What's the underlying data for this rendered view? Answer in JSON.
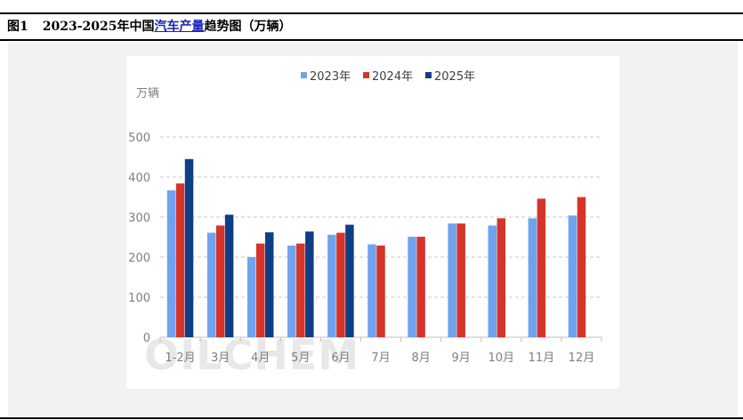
{
  "figure": {
    "number": "图1",
    "title_prefix": "2023-2025年中国",
    "title_link": "汽车产量",
    "title_suffix": "趋势图（万辆）"
  },
  "watermark": "OILCHEM",
  "colors": {
    "2023年": "#6fa3ef",
    "2024年": "#d5342b",
    "2025年": "#0e3e86",
    "link": "#1a25b8"
  },
  "chart_data": {
    "type": "bar",
    "title": "",
    "ylabel": "万辆",
    "xlabel": "",
    "ylim": [
      0,
      500
    ],
    "yticks": [
      0,
      100,
      200,
      300,
      400,
      500
    ],
    "grid": true,
    "legend_position": "top-center",
    "categories": [
      "1-2月",
      "3月",
      "4月",
      "5月",
      "6月",
      "7月",
      "8月",
      "9月",
      "10月",
      "11月",
      "12月"
    ],
    "series": [
      {
        "name": "2023年",
        "values": [
          367,
          261,
          200,
          229,
          256,
          232,
          251,
          284,
          279,
          297,
          304
        ]
      },
      {
        "name": "2024年",
        "values": [
          384,
          279,
          234,
          234,
          261,
          229,
          251,
          284,
          297,
          346,
          350
        ]
      },
      {
        "name": "2025年",
        "values": [
          445,
          306,
          262,
          264,
          281,
          null,
          null,
          null,
          null,
          null,
          null
        ]
      }
    ]
  }
}
